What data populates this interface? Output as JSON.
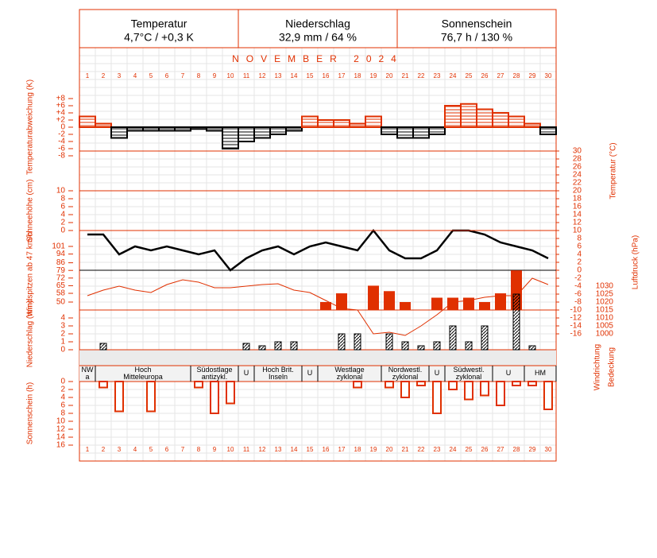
{
  "header": [
    {
      "title": "Temperatur",
      "value": "4,7°C / +0,3 K"
    },
    {
      "title": "Niederschlag",
      "value": "32,9 mm / 64 %"
    },
    {
      "title": "Sonnenschein",
      "value": "76,7 h / 130 %"
    }
  ],
  "month": "NOVEMBER 2024",
  "days": [
    1,
    2,
    3,
    4,
    5,
    6,
    7,
    8,
    9,
    10,
    11,
    12,
    13,
    14,
    15,
    16,
    17,
    18,
    19,
    20,
    21,
    22,
    23,
    24,
    25,
    26,
    27,
    28,
    29,
    30
  ],
  "weather_types": [
    "NW a",
    "Hoch Mitteleuropa",
    "Südostlage antizykl.",
    "U",
    "Hoch Brit. Inseln",
    "U",
    "Westlage zyklonal",
    "Nordwestl. zyklonal",
    "U",
    "Südwestl. zyklonal",
    "U",
    "HM"
  ],
  "right_labels": [
    "Windrichtung",
    "Bedeckung"
  ],
  "chart_data": [
    {
      "type": "step",
      "ylabel": "Temperaturabweichung (K)",
      "color": "#e03000",
      "negative_color": "#000000",
      "ylim": [
        -8,
        8
      ],
      "yticks": [
        {
          "value": 8,
          "label": "+8"
        },
        {
          "value": 6,
          "label": "+6"
        },
        {
          "value": 4,
          "label": "+4"
        },
        {
          "value": 2,
          "label": "+2"
        },
        0,
        -2,
        -4,
        -6,
        -8
      ],
      "values": [
        3,
        1,
        -3,
        -1,
        -1,
        -1,
        -1,
        -0.5,
        -1,
        -6,
        -4,
        -3,
        -2,
        -1,
        3,
        2,
        2,
        1,
        3,
        -2,
        -3,
        -3,
        -2,
        6,
        6.5,
        5,
        4,
        3,
        1,
        -2
      ]
    },
    {
      "type": "line",
      "ylabel": "Temperatur (°C)",
      "color": "#000000",
      "ylim": [
        -16,
        30
      ],
      "yticks": [
        30,
        28,
        26,
        24,
        22,
        20,
        18,
        16,
        14,
        12,
        10,
        8,
        6,
        4,
        2,
        0,
        -2,
        -4,
        -6,
        -8,
        -10,
        -12,
        -14,
        -16
      ],
      "values": [
        9,
        9,
        4,
        6,
        5,
        6,
        5,
        4,
        5,
        0,
        3,
        5,
        6,
        4,
        6,
        7,
        6,
        5,
        10,
        5,
        3,
        3,
        5,
        10,
        10,
        9,
        7,
        6,
        5,
        3
      ]
    },
    {
      "type": "line",
      "ylabel": "Schneehöhe (cm)",
      "color": "#e03000",
      "ylim": [
        0,
        10
      ],
      "yticks": [
        10,
        8,
        6,
        4,
        2,
        0
      ],
      "values": [
        0,
        0,
        0,
        0,
        0,
        0,
        0,
        0,
        0,
        0,
        0,
        0,
        0,
        0,
        0,
        0,
        0,
        0,
        0,
        0,
        0,
        0,
        0,
        0,
        0,
        0,
        0,
        0,
        0,
        0
      ]
    },
    {
      "type": "bar",
      "ylabel": "Windspitzen ab 47 km/h",
      "color": "#e03000",
      "ylim": [
        50,
        101
      ],
      "yticks": [
        101,
        94,
        86,
        79,
        72,
        65,
        58,
        50
      ],
      "values": [
        null,
        null,
        null,
        null,
        null,
        null,
        null,
        null,
        null,
        null,
        null,
        null,
        null,
        null,
        null,
        50,
        58,
        null,
        65,
        60,
        50,
        null,
        54,
        54,
        54,
        50,
        58,
        79,
        null,
        null
      ]
    },
    {
      "type": "line",
      "ylabel": "Luftdruck (hPa)",
      "color": "#e03000",
      "ylim": [
        1000,
        1030
      ],
      "yticks": [
        1030,
        1025,
        1020,
        1015,
        1010,
        1005,
        1000
      ],
      "values": [
        1024,
        1027.5,
        1030,
        1027.5,
        1026,
        1031,
        1034,
        1032.5,
        1029,
        1029,
        1030,
        1031,
        1031.5,
        1027.5,
        1026,
        1021,
        1016,
        1015,
        1000,
        1001,
        999,
        1005,
        1012,
        1020,
        1021,
        1023,
        1024,
        1024,
        1035,
        1031
      ]
    },
    {
      "type": "hatch",
      "ylabel": "Niederschlag (mm)",
      "color": "#000000",
      "ylim": [
        0,
        4
      ],
      "yticks": [
        4,
        3,
        2,
        1,
        0
      ],
      "values": [
        0,
        0.8,
        0,
        0,
        0,
        0,
        0,
        0,
        0,
        0,
        0.8,
        0.5,
        1,
        1,
        0,
        0,
        2,
        2,
        0,
        2,
        1,
        0.5,
        1,
        3,
        1,
        3,
        0,
        7,
        0.5,
        0
      ]
    },
    {
      "type": "sunbar",
      "ylabel": "Sonnenschein (h)",
      "color": "#e03000",
      "ylim": [
        0,
        16
      ],
      "yticks": [
        0,
        2,
        4,
        6,
        8,
        10,
        12,
        14,
        16
      ],
      "values": [
        0,
        1.5,
        7.5,
        0,
        7.5,
        0,
        0,
        1.5,
        8,
        5.5,
        0,
        0,
        0,
        0,
        0,
        0,
        0,
        1.5,
        0,
        1.5,
        4,
        1,
        8,
        2,
        4.5,
        3.5,
        6,
        1,
        1,
        7
      ]
    }
  ]
}
